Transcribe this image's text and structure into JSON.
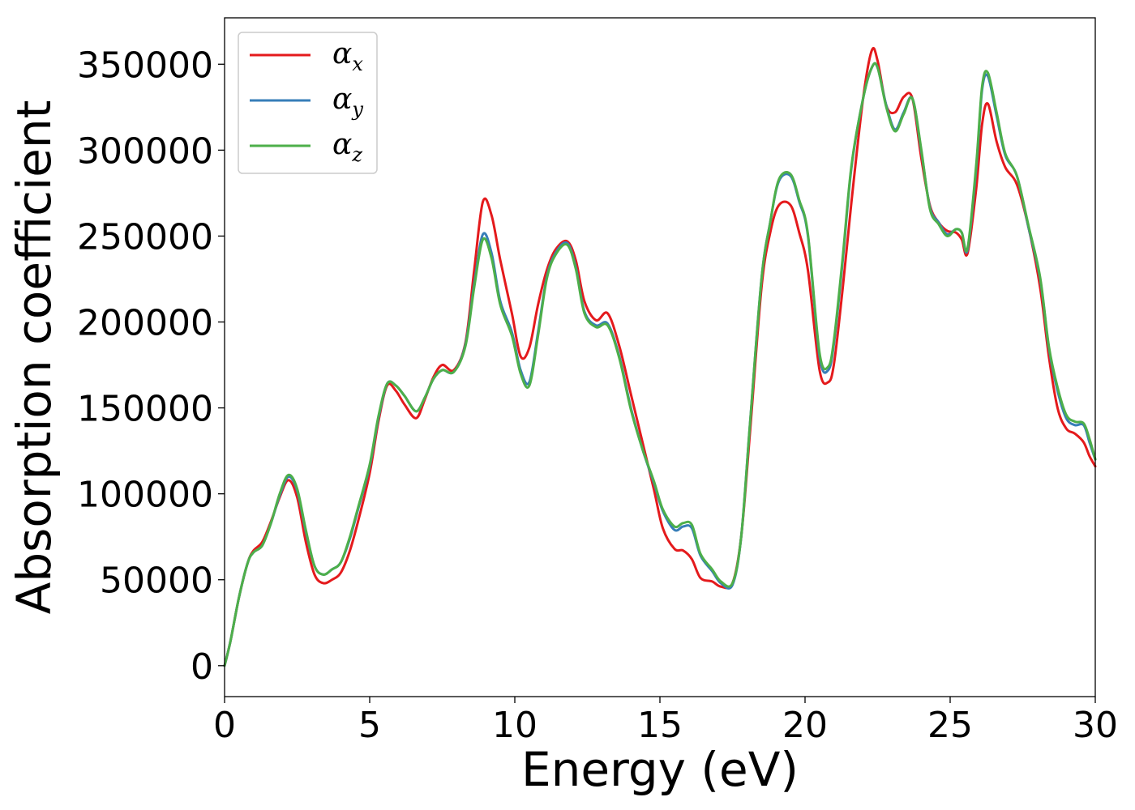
{
  "chart_data": {
    "type": "line",
    "title": "",
    "xlabel": "Energy (eV)",
    "ylabel": "Absorption coefficient",
    "xlim": [
      0,
      30
    ],
    "ylim": [
      -18000,
      377000
    ],
    "x_ticks": [
      0,
      5,
      10,
      15,
      20,
      25,
      30
    ],
    "y_ticks": [
      0,
      50000,
      100000,
      150000,
      200000,
      250000,
      300000,
      350000
    ],
    "grid": false,
    "legend_position": "top-left",
    "x": [
      0,
      0.2,
      0.5,
      0.8,
      1.0,
      1.3,
      1.6,
      1.9,
      2.2,
      2.5,
      2.8,
      3.1,
      3.4,
      3.7,
      4.0,
      4.3,
      4.6,
      5.0,
      5.3,
      5.6,
      5.9,
      6.2,
      6.6,
      6.9,
      7.2,
      7.5,
      7.9,
      8.3,
      8.6,
      8.9,
      9.2,
      9.5,
      9.9,
      10.2,
      10.5,
      10.8,
      11.1,
      11.4,
      11.8,
      12.1,
      12.4,
      12.8,
      13.2,
      13.6,
      14.0,
      14.4,
      14.8,
      15.1,
      15.5,
      15.8,
      16.1,
      16.4,
      16.8,
      17.1,
      17.5,
      17.8,
      18.1,
      18.5,
      18.8,
      19.1,
      19.5,
      19.8,
      20.1,
      20.5,
      20.8,
      21.0,
      21.3,
      21.6,
      22.0,
      22.3,
      22.5,
      22.8,
      23.1,
      23.4,
      23.7,
      24.0,
      24.3,
      24.6,
      24.9,
      25.2,
      25.4,
      25.6,
      25.9,
      26.1,
      26.3,
      26.6,
      26.9,
      27.3,
      27.7,
      28.1,
      28.4,
      28.7,
      29.0,
      29.3,
      29.6,
      29.8,
      30.0
    ],
    "series": [
      {
        "name": "α_x",
        "color": "#e41a1c",
        "values": [
          0,
          14000,
          40000,
          60000,
          67000,
          72000,
          84000,
          98000,
          108000,
          98000,
          72000,
          53000,
          48000,
          50000,
          54000,
          66000,
          84000,
          112000,
          142000,
          163000,
          160000,
          152000,
          144000,
          155000,
          168000,
          175000,
          172000,
          188000,
          230000,
          270000,
          262000,
          236000,
          205000,
          180000,
          185000,
          210000,
          230000,
          242000,
          247000,
          236000,
          212000,
          201000,
          205000,
          186000,
          158000,
          130000,
          102000,
          80000,
          68000,
          67000,
          62000,
          51000,
          49000,
          46000,
          48000,
          75000,
          135000,
          220000,
          252000,
          268000,
          268000,
          252000,
          230000,
          172000,
          165000,
          176000,
          220000,
          270000,
          330000,
          358000,
          352000,
          326000,
          322000,
          331000,
          330000,
          296000,
          268000,
          258000,
          253000,
          252000,
          248000,
          240000,
          278000,
          315000,
          327000,
          305000,
          290000,
          280000,
          255000,
          220000,
          180000,
          150000,
          138000,
          135000,
          130000,
          122000,
          116000
        ]
      },
      {
        "name": "α_y",
        "color": "#377eb8",
        "values": [
          0,
          14000,
          40000,
          60000,
          66000,
          70000,
          83000,
          99000,
          110000,
          102000,
          78000,
          58000,
          53000,
          56000,
          60000,
          73000,
          91000,
          116000,
          144000,
          164000,
          163000,
          157000,
          148000,
          156000,
          167000,
          172000,
          171000,
          187000,
          222000,
          251000,
          240000,
          212000,
          194000,
          172000,
          165000,
          194000,
          226000,
          240000,
          246000,
          232000,
          206000,
          198000,
          199000,
          180000,
          150000,
          126000,
          106000,
          90000,
          79000,
          81000,
          80000,
          64000,
          55000,
          48000,
          47000,
          75000,
          140000,
          225000,
          258000,
          282000,
          285000,
          270000,
          250000,
          180000,
          172000,
          188000,
          236000,
          290000,
          330000,
          348000,
          348000,
          326000,
          312000,
          322000,
          330000,
          300000,
          267000,
          258000,
          251000,
          254000,
          252000,
          242000,
          290000,
          335000,
          343000,
          320000,
          297000,
          285000,
          255000,
          225000,
          185000,
          160000,
          144000,
          140000,
          140000,
          130000,
          120000
        ]
      },
      {
        "name": "α_z",
        "color": "#4daf4a",
        "values": [
          0,
          14000,
          40000,
          60000,
          66000,
          70000,
          83000,
          100000,
          111000,
          103000,
          79000,
          58000,
          53000,
          56000,
          60000,
          74000,
          92000,
          117000,
          145000,
          164000,
          163000,
          157000,
          148000,
          156000,
          167000,
          172000,
          171000,
          186000,
          220000,
          248000,
          237000,
          210000,
          192000,
          170000,
          163000,
          192000,
          225000,
          239000,
          245000,
          231000,
          205000,
          197000,
          198000,
          179000,
          149000,
          126000,
          107000,
          91000,
          81000,
          83000,
          82000,
          65000,
          56000,
          49000,
          48000,
          75000,
          140000,
          225000,
          258000,
          283000,
          286000,
          271000,
          251000,
          182000,
          174000,
          190000,
          238000,
          291000,
          330000,
          348000,
          348000,
          325000,
          311000,
          321000,
          330000,
          301000,
          266000,
          257000,
          250000,
          254000,
          252000,
          243000,
          292000,
          337000,
          345000,
          322000,
          298000,
          285000,
          256000,
          226000,
          186000,
          162000,
          146000,
          142000,
          141000,
          132000,
          120000
        ]
      }
    ]
  }
}
